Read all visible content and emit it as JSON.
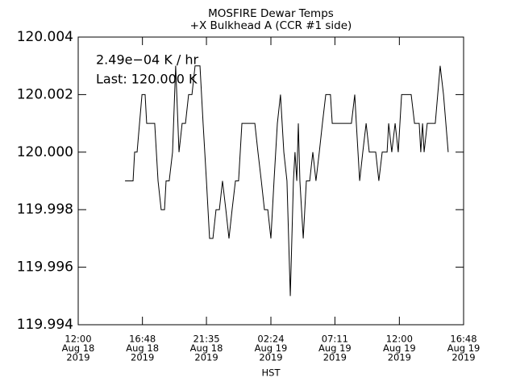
{
  "chart_data": {
    "type": "line",
    "title": "MOSFIRE Dewar Temps",
    "subtitle": "+X Bulkhead A (CCR #1 side)",
    "annotations": [
      "2.49e−04 K / hr",
      "Last: 120.000 K"
    ],
    "xlabel": "HST",
    "color": "#000000",
    "grid": false,
    "xlim": [
      "2019-08-18 12:00",
      "2019-08-19 16:48"
    ],
    "xticks": [
      {
        "value": "2019-08-18 12:00",
        "label": [
          "12:00",
          "Aug 18",
          "2019"
        ]
      },
      {
        "value": "2019-08-18 16:48",
        "label": [
          "16:48",
          "Aug 18",
          "2019"
        ]
      },
      {
        "value": "2019-08-18 21:35",
        "label": [
          "21:35",
          "Aug 18",
          "2019"
        ]
      },
      {
        "value": "2019-08-19 02:24",
        "label": [
          "02:24",
          "Aug 19",
          "2019"
        ]
      },
      {
        "value": "2019-08-19 07:11",
        "label": [
          "07:11",
          "Aug 19",
          "2019"
        ]
      },
      {
        "value": "2019-08-19 12:00",
        "label": [
          "12:00",
          "Aug 19",
          "2019"
        ]
      },
      {
        "value": "2019-08-19 16:48",
        "label": [
          "16:48",
          "Aug 19",
          "2019"
        ]
      }
    ],
    "ylim": [
      119.994,
      120.004
    ],
    "yticks": [
      119.994,
      119.996,
      119.998,
      {
        "value": 120.0,
        "label": "120.000"
      },
      120.002,
      120.004
    ],
    "x": [
      "2019-08-18 15:30",
      "2019-08-18 16:06",
      "2019-08-18 16:13",
      "2019-08-18 16:24",
      "2019-08-18 16:46",
      "2019-08-18 17:00",
      "2019-08-18 17:07",
      "2019-08-18 17:43",
      "2019-08-18 17:58",
      "2019-08-18 18:12",
      "2019-08-18 18:27",
      "2019-08-18 18:34",
      "2019-08-18 18:48",
      "2019-08-18 19:03",
      "2019-08-18 19:17",
      "2019-08-18 19:32",
      "2019-08-18 19:46",
      "2019-08-18 20:01",
      "2019-08-18 20:15",
      "2019-08-18 20:30",
      "2019-08-18 20:44",
      "2019-08-18 21:06",
      "2019-08-18 21:20",
      "2019-08-18 21:35",
      "2019-08-18 21:49",
      "2019-08-18 22:04",
      "2019-08-18 22:18",
      "2019-08-18 22:33",
      "2019-08-18 22:47",
      "2019-08-18 23:02",
      "2019-08-18 23:16",
      "2019-08-18 23:30",
      "2019-08-18 23:45",
      "2019-08-18 23:59",
      "2019-08-19 00:14",
      "2019-08-19 01:12",
      "2019-08-19 01:26",
      "2019-08-19 01:41",
      "2019-08-19 01:55",
      "2019-08-19 02:10",
      "2019-08-19 02:24",
      "2019-08-19 02:38",
      "2019-08-19 02:53",
      "2019-08-19 03:07",
      "2019-08-19 03:22",
      "2019-08-19 03:36",
      "2019-08-19 03:51",
      "2019-08-19 04:05",
      "2019-08-19 04:12",
      "2019-08-19 04:20",
      "2019-08-19 04:27",
      "2019-08-19 04:34",
      "2019-08-19 04:49",
      "2019-08-19 05:03",
      "2019-08-19 05:18",
      "2019-08-19 05:32",
      "2019-08-19 05:46",
      "2019-08-19 06:01",
      "2019-08-19 06:15",
      "2019-08-19 06:30",
      "2019-08-19 06:51",
      "2019-08-19 06:59",
      "2019-08-19 08:25",
      "2019-08-19 08:40",
      "2019-08-19 08:47",
      "2019-08-19 09:02",
      "2019-08-19 09:16",
      "2019-08-19 09:31",
      "2019-08-19 09:45",
      "2019-08-19 10:14",
      "2019-08-19 10:28",
      "2019-08-19 10:43",
      "2019-08-19 11:05",
      "2019-08-19 11:12",
      "2019-08-19 11:26",
      "2019-08-19 11:41",
      "2019-08-19 11:55",
      "2019-08-19 12:10",
      "2019-08-19 12:53",
      "2019-08-19 13:08",
      "2019-08-19 13:29",
      "2019-08-19 13:36",
      "2019-08-19 13:44",
      "2019-08-19 13:51",
      "2019-08-19 14:05",
      "2019-08-19 14:41",
      "2019-08-19 15:03",
      "2019-08-19 15:18",
      "2019-08-19 15:39"
    ],
    "values": [
      119.999,
      119.999,
      120.0,
      120.0,
      120.002,
      120.002,
      120.001,
      120.001,
      119.999,
      119.998,
      119.998,
      119.999,
      119.999,
      120.0,
      120.003,
      120.0,
      120.001,
      120.001,
      120.002,
      120.002,
      120.003,
      120.003,
      120.001,
      119.999,
      119.997,
      119.997,
      119.998,
      119.998,
      119.999,
      119.998,
      119.997,
      119.998,
      119.999,
      119.999,
      120.001,
      120.001,
      120.0,
      119.999,
      119.998,
      119.998,
      119.997,
      119.999,
      120.001,
      120.002,
      120.0,
      119.999,
      119.995,
      119.999,
      120.0,
      119.999,
      120.001,
      119.999,
      119.997,
      119.999,
      119.999,
      120.0,
      119.999,
      120.0,
      120.001,
      120.002,
      120.002,
      120.001,
      120.001,
      120.002,
      120.001,
      119.999,
      120.0,
      120.001,
      120.0,
      120.0,
      119.999,
      120.0,
      120.0,
      120.001,
      120.0,
      120.001,
      120.0,
      120.002,
      120.002,
      120.001,
      120.001,
      120.0,
      120.001,
      120.0,
      120.001,
      120.001,
      120.003,
      120.002,
      120.0
    ]
  }
}
